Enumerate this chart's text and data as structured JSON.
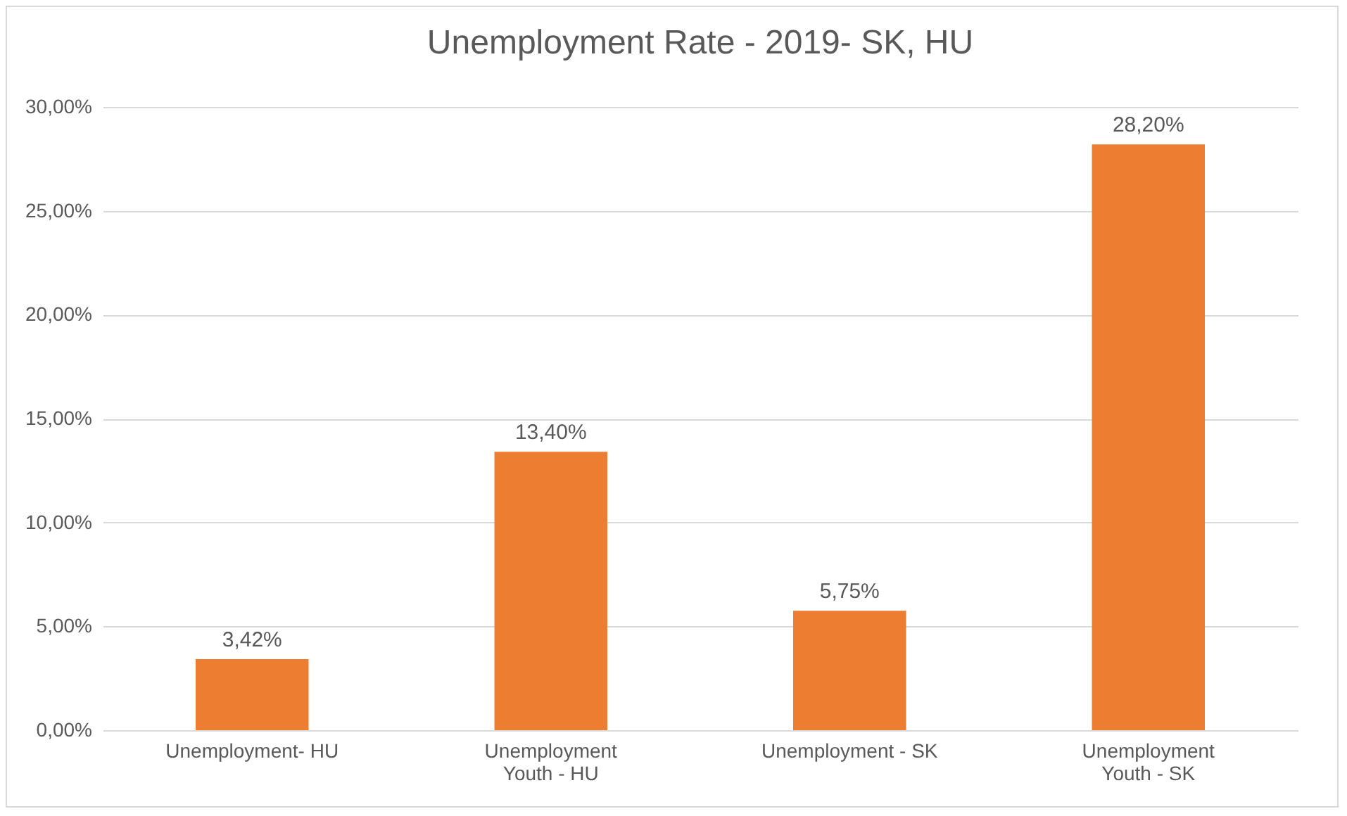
{
  "chart_data": {
    "type": "bar",
    "title": "Unemployment Rate - 2019- SK, HU",
    "categories": [
      "Unemployment- HU",
      "Unemployment Youth - HU",
      "Unemployment - SK",
      "Unemployment Youth - SK"
    ],
    "values": [
      3.42,
      13.4,
      5.75,
      28.2
    ],
    "color": "#ed7d31",
    "value_labels": [
      "3,42%",
      "13,40%",
      "5,75%",
      "28,20%"
    ],
    "ylim": [
      0,
      30
    ],
    "yticks": [
      {
        "value": 0,
        "label": "0,00%"
      },
      {
        "value": 5,
        "label": "5,00%"
      },
      {
        "value": 10,
        "label": "10,00%"
      },
      {
        "value": 15,
        "label": "15,00%"
      },
      {
        "value": 20,
        "label": "20,00%"
      },
      {
        "value": 25,
        "label": "25,00%"
      },
      {
        "value": 30,
        "label": "30,00%"
      }
    ],
    "grid": "y"
  }
}
